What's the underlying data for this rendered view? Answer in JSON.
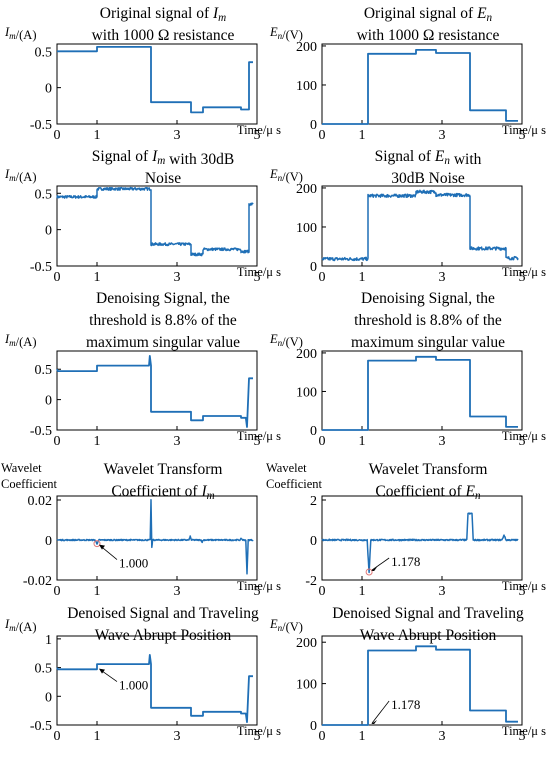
{
  "chart_data": [
    {
      "type": "line",
      "title_lines": [
        "Original signal of I_m",
        "with 1000 Ω resistance"
      ],
      "ylabel": "I_m/(A)",
      "xlabel": "Time/μ s",
      "xlim": [
        0,
        5
      ],
      "ylim": [
        -0.5,
        0.6
      ],
      "xticks": [
        0,
        1,
        3,
        5
      ],
      "yticks": [
        0.5,
        0,
        -0.5
      ],
      "color": "#1f6fb6",
      "noise": 0,
      "x": [
        0,
        0.02,
        0.05,
        1.0,
        1.0,
        2.35,
        2.35,
        3.35,
        3.35,
        3.65,
        3.65,
        4.6,
        4.6,
        4.8,
        4.8,
        4.9
      ],
      "y": [
        0.5,
        0.5,
        0.5,
        0.5,
        0.56,
        0.56,
        -0.2,
        -0.2,
        -0.34,
        -0.34,
        -0.27,
        -0.27,
        -0.3,
        -0.3,
        0.35,
        0.35
      ],
      "annotation": null
    },
    {
      "type": "line",
      "title_lines": [
        "Original signal of E_n",
        "with 1000 Ω resistance"
      ],
      "ylabel": "E_n/(V)",
      "xlabel": "Time/μ s",
      "xlim": [
        0,
        5
      ],
      "ylim": [
        0,
        205
      ],
      "xticks": [
        0,
        1,
        3,
        5
      ],
      "yticks": [
        200,
        100,
        0
      ],
      "color": "#1f6fb6",
      "noise": 0,
      "x": [
        0,
        1.15,
        1.15,
        2.35,
        2.35,
        2.85,
        2.85,
        3.7,
        3.7,
        4.6,
        4.6,
        4.9
      ],
      "y": [
        0,
        0,
        180,
        180,
        190,
        190,
        182,
        182,
        35,
        35,
        8,
        8
      ],
      "annotation": null
    },
    {
      "type": "line",
      "title_lines": [
        "Signal of I_m with 30dB",
        "Noise"
      ],
      "ylabel": "I_m/(A)",
      "xlabel": "Time/μ s",
      "xlim": [
        0,
        5
      ],
      "ylim": [
        -0.5,
        0.6
      ],
      "xticks": [
        0,
        1,
        3,
        5
      ],
      "yticks": [
        0.5,
        0,
        -0.5
      ],
      "color": "#1f6fb6",
      "noise": 0.018,
      "x": [
        0,
        1.0,
        1.0,
        2.35,
        2.35,
        3.35,
        3.35,
        3.65,
        3.65,
        4.6,
        4.6,
        4.8,
        4.8,
        4.9
      ],
      "y": [
        0.45,
        0.45,
        0.56,
        0.56,
        -0.2,
        -0.2,
        -0.34,
        -0.34,
        -0.27,
        -0.27,
        -0.3,
        -0.3,
        0.35,
        0.35
      ],
      "annotation": null
    },
    {
      "type": "line",
      "title_lines": [
        "Signal of E_n with",
        "30dB Noise"
      ],
      "ylabel": "E_n/(V)",
      "xlabel": "Time/μ s",
      "xlim": [
        0,
        5
      ],
      "ylim": [
        0,
        205
      ],
      "xticks": [
        0,
        1,
        3,
        5
      ],
      "yticks": [
        200,
        100,
        0
      ],
      "color": "#1f6fb6",
      "noise": 4,
      "x": [
        0,
        1.15,
        1.15,
        2.35,
        2.35,
        2.85,
        2.85,
        3.7,
        3.7,
        4.6,
        4.6,
        4.9
      ],
      "y": [
        18,
        18,
        180,
        180,
        190,
        190,
        182,
        182,
        45,
        45,
        20,
        20
      ],
      "annotation": null
    },
    {
      "type": "line",
      "title_lines": [
        "Denoising Signal, the",
        "threshold is 8.8% of the",
        "maximum singular value"
      ],
      "ylabel": "I_m/(A)",
      "xlabel": "Time/μ s",
      "xlim": [
        0,
        5
      ],
      "ylim": [
        -0.5,
        0.8
      ],
      "xticks": [
        0,
        1,
        3,
        5
      ],
      "yticks": [
        0.5,
        0,
        -0.5
      ],
      "color": "#1f6fb6",
      "noise": 0,
      "x": [
        0,
        0.02,
        1.0,
        1.0,
        2.3,
        2.32,
        2.35,
        2.35,
        3.35,
        3.35,
        3.65,
        3.65,
        4.6,
        4.6,
        4.72,
        4.75,
        4.8,
        4.9
      ],
      "y": [
        0.5,
        0.47,
        0.47,
        0.56,
        0.56,
        0.72,
        0.56,
        -0.2,
        -0.2,
        -0.34,
        -0.34,
        -0.27,
        -0.27,
        -0.3,
        -0.3,
        -0.45,
        0.35,
        0.35
      ],
      "annotation": null
    },
    {
      "type": "line",
      "title_lines": [
        "Denoising Signal, the",
        "threshold is 8.8% of the",
        "maximum singular value"
      ],
      "ylabel": "E_n/(V)",
      "xlabel": "Time/μ s",
      "xlim": [
        0,
        5
      ],
      "ylim": [
        0,
        205
      ],
      "xticks": [
        0,
        1,
        3,
        5
      ],
      "yticks": [
        200,
        100,
        0
      ],
      "color": "#1f6fb6",
      "noise": 0,
      "x": [
        0,
        1.15,
        1.15,
        2.35,
        2.35,
        2.85,
        2.85,
        3.7,
        3.7,
        4.6,
        4.6,
        4.9
      ],
      "y": [
        0,
        0,
        180,
        180,
        190,
        190,
        182,
        182,
        35,
        35,
        8,
        8
      ],
      "annotation": null
    },
    {
      "type": "line",
      "title_lines": [
        "Wavelet Transform",
        "Coefficient of I_m"
      ],
      "ylabel_lines": [
        "Wavelet",
        "Coefficient"
      ],
      "xlabel": "Time/μ s",
      "xlim": [
        0,
        5
      ],
      "ylim": [
        -0.02,
        0.022
      ],
      "xticks": [
        0,
        1,
        3,
        5
      ],
      "yticks": [
        0.02,
        0,
        -0.02
      ],
      "color": "#1f6fb6",
      "noise": 0.0003,
      "x": [
        0,
        0.95,
        1.0,
        1.05,
        2.33,
        2.35,
        2.37,
        2.39,
        3.3,
        3.33,
        3.36,
        3.6,
        3.63,
        3.66,
        4.58,
        4.61,
        4.64,
        4.72,
        4.75,
        4.78,
        4.9
      ],
      "y": [
        0,
        0,
        -0.0018,
        0,
        0,
        0.02,
        -0.004,
        0,
        0,
        0.0018,
        0,
        0,
        -0.001,
        0,
        0,
        0.0008,
        0,
        0,
        -0.017,
        0,
        0
      ],
      "annotation": {
        "text": "1.000",
        "x": 1.0,
        "y": -0.0018
      }
    },
    {
      "type": "line",
      "title_lines": [
        "Wavelet Transform",
        "Coefficient of E_n"
      ],
      "ylabel_lines": [
        "Wavelet",
        "Coefficient"
      ],
      "xlabel": "Time/μ s",
      "xlim": [
        0,
        5
      ],
      "ylim": [
        -2,
        2.2
      ],
      "xticks": [
        0,
        1,
        3,
        5
      ],
      "yticks": [
        2,
        0,
        -2
      ],
      "color": "#1f6fb6",
      "noise": 0.035,
      "x": [
        0,
        1.13,
        1.15,
        1.178,
        1.2,
        1.22,
        3.62,
        3.65,
        3.7,
        3.75,
        3.78,
        4.5,
        4.55,
        4.6,
        4.9
      ],
      "y": [
        0,
        0,
        -0.8,
        -1.6,
        -0.7,
        0,
        0,
        1.35,
        1.3,
        1.35,
        0,
        0,
        0.25,
        0,
        0
      ],
      "annotation": {
        "text": "1.178",
        "x": 1.178,
        "y": -1.6
      }
    },
    {
      "type": "line",
      "title_lines": [
        "Denoised Signal and Traveling",
        "Wave Abrupt Position"
      ],
      "ylabel": "I_m/(A)",
      "xlabel": "Time/μ s",
      "xlim": [
        0,
        5
      ],
      "ylim": [
        -0.5,
        1.05
      ],
      "xticks": [
        0,
        1,
        3,
        5
      ],
      "yticks": [
        1,
        0.5,
        0,
        -0.5
      ],
      "color": "#1f6fb6",
      "noise": 0,
      "x": [
        0,
        0.02,
        1.0,
        1.0,
        2.3,
        2.32,
        2.35,
        2.35,
        3.35,
        3.35,
        3.65,
        3.65,
        4.6,
        4.6,
        4.72,
        4.75,
        4.8,
        4.9
      ],
      "y": [
        0.5,
        0.47,
        0.47,
        0.56,
        0.56,
        0.72,
        0.56,
        -0.2,
        -0.2,
        -0.34,
        -0.34,
        -0.27,
        -0.27,
        -0.3,
        -0.3,
        -0.45,
        0.35,
        0.35
      ],
      "annotation": {
        "text": "1.000",
        "x": 1.0,
        "y": 0.5
      }
    },
    {
      "type": "line",
      "title_lines": [
        "Denoised Signal and Traveling",
        "Wave Abrupt Position"
      ],
      "ylabel": "E_n/(V)",
      "xlabel": "Time/μ s",
      "xlim": [
        0,
        5
      ],
      "ylim": [
        0,
        215
      ],
      "xticks": [
        0,
        1,
        3,
        5
      ],
      "yticks": [
        200,
        100,
        0
      ],
      "color": "#1f6fb6",
      "noise": 0,
      "x": [
        0,
        1.15,
        1.15,
        2.35,
        2.35,
        2.85,
        2.85,
        3.7,
        3.7,
        4.6,
        4.6,
        4.9
      ],
      "y": [
        0,
        0,
        180,
        180,
        190,
        190,
        182,
        182,
        35,
        35,
        8,
        8
      ],
      "annotation": {
        "text": "1.178",
        "x": 1.178,
        "y": 0
      }
    }
  ]
}
